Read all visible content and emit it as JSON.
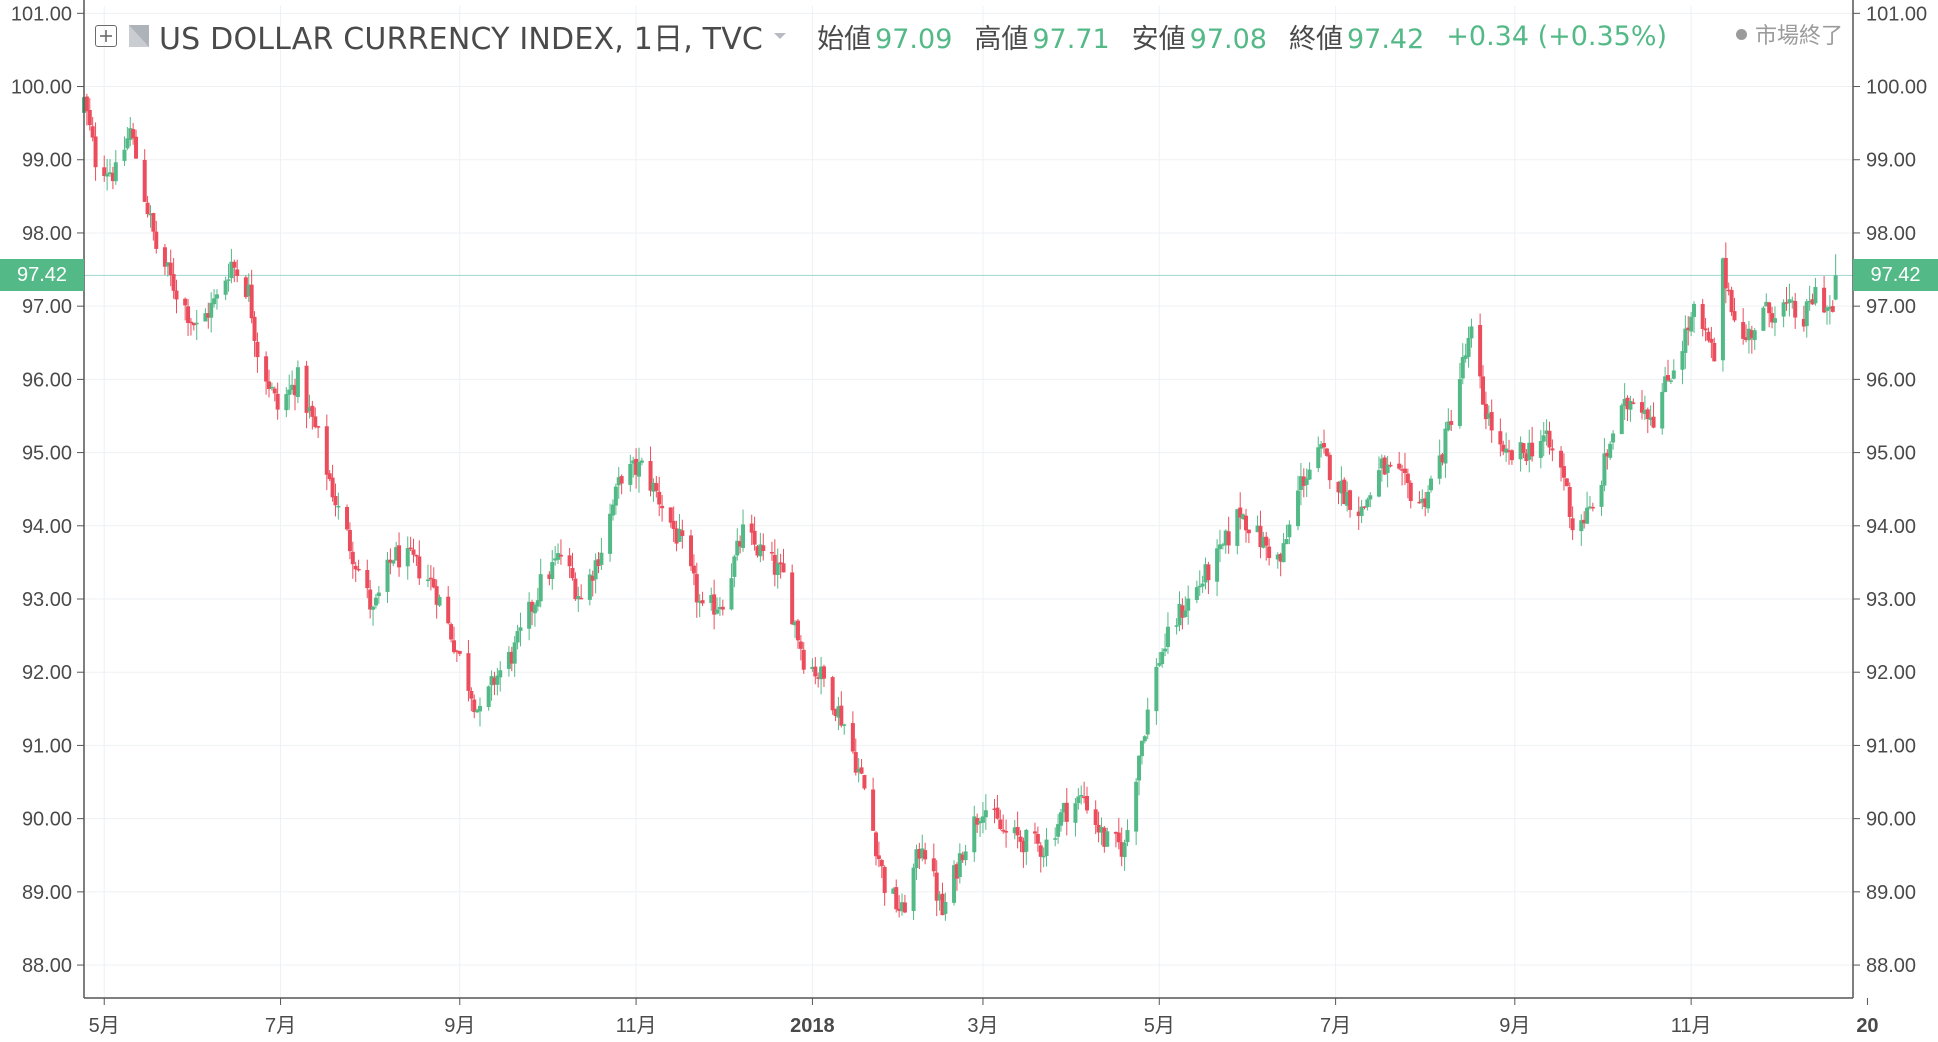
{
  "header": {
    "symbol": "US DOLLAR CURRENCY INDEX, 1日, TVC",
    "ohlc": [
      {
        "label": "始値",
        "value": "97.09"
      },
      {
        "label": "高値",
        "value": "97.71"
      },
      {
        "label": "安値",
        "value": "97.08"
      },
      {
        "label": "終値",
        "value": "97.42"
      }
    ],
    "change": "+0.34 (+0.35%)",
    "status": "市場終了"
  },
  "last_price_label": "97.42",
  "colors": {
    "up": "#53b987",
    "down": "#eb4d5c",
    "grid": "#eef1f4",
    "last_price_line": "#9fd6cf"
  },
  "chart_data": {
    "type": "candlestick",
    "title": "US DOLLAR CURRENCY INDEX, 1日, TVC",
    "interval": "1日",
    "last_close": 97.42,
    "y_ticks": [
      "101.00",
      "100.00",
      "99.00",
      "98.00",
      "97.00",
      "96.00",
      "95.00",
      "94.00",
      "93.00",
      "92.00",
      "91.00",
      "90.00",
      "89.00",
      "88.00"
    ],
    "ylim": [
      87.55,
      101.1
    ],
    "x_ticks": [
      {
        "label": "5月",
        "date": "2017-05-01",
        "bold": false
      },
      {
        "label": "7月",
        "date": "2017-07-01",
        "bold": false
      },
      {
        "label": "9月",
        "date": "2017-09-01",
        "bold": false
      },
      {
        "label": "11月",
        "date": "2017-11-01",
        "bold": false
      },
      {
        "label": "2018",
        "date": "2018-01-01",
        "bold": true
      },
      {
        "label": "3月",
        "date": "2018-03-01",
        "bold": false
      },
      {
        "label": "5月",
        "date": "2018-05-01",
        "bold": false
      },
      {
        "label": "7月",
        "date": "2018-07-01",
        "bold": false
      },
      {
        "label": "9月",
        "date": "2018-09-01",
        "bold": false
      },
      {
        "label": "11月",
        "date": "2018-11-01",
        "bold": false
      },
      {
        "label": "20",
        "date": "2019-01-01",
        "bold": true
      }
    ],
    "xlim": [
      "2017-04-24",
      "2018-12-27"
    ],
    "approx_closes": [
      {
        "date": "2017-04-24",
        "close": 99.8
      },
      {
        "date": "2017-04-28",
        "close": 99.0
      },
      {
        "date": "2017-05-05",
        "close": 98.8
      },
      {
        "date": "2017-05-10",
        "close": 99.4
      },
      {
        "date": "2017-05-19",
        "close": 97.8
      },
      {
        "date": "2017-05-26",
        "close": 97.2
      },
      {
        "date": "2017-06-02",
        "close": 96.7
      },
      {
        "date": "2017-06-09",
        "close": 97.1
      },
      {
        "date": "2017-06-14",
        "close": 97.6
      },
      {
        "date": "2017-06-20",
        "close": 97.2
      },
      {
        "date": "2017-06-23",
        "close": 96.4
      },
      {
        "date": "2017-06-30",
        "close": 95.6
      },
      {
        "date": "2017-07-07",
        "close": 96.0
      },
      {
        "date": "2017-07-14",
        "close": 95.2
      },
      {
        "date": "2017-07-21",
        "close": 94.2
      },
      {
        "date": "2017-07-28",
        "close": 93.4
      },
      {
        "date": "2017-08-02",
        "close": 92.8
      },
      {
        "date": "2017-08-09",
        "close": 93.6
      },
      {
        "date": "2017-08-16",
        "close": 93.5
      },
      {
        "date": "2017-08-23",
        "close": 93.2
      },
      {
        "date": "2017-08-31",
        "close": 92.3
      },
      {
        "date": "2017-09-08",
        "close": 91.4
      },
      {
        "date": "2017-09-13",
        "close": 91.9
      },
      {
        "date": "2017-09-20",
        "close": 92.3
      },
      {
        "date": "2017-09-29",
        "close": 93.2
      },
      {
        "date": "2017-10-06",
        "close": 93.6
      },
      {
        "date": "2017-10-13",
        "close": 93.0
      },
      {
        "date": "2017-10-20",
        "close": 93.7
      },
      {
        "date": "2017-10-27",
        "close": 94.7
      },
      {
        "date": "2017-11-03",
        "close": 94.8
      },
      {
        "date": "2017-11-10",
        "close": 94.3
      },
      {
        "date": "2017-11-17",
        "close": 93.7
      },
      {
        "date": "2017-11-24",
        "close": 92.8
      },
      {
        "date": "2017-12-01",
        "close": 93.0
      },
      {
        "date": "2017-12-08",
        "close": 93.9
      },
      {
        "date": "2017-12-15",
        "close": 93.6
      },
      {
        "date": "2017-12-22",
        "close": 93.3
      },
      {
        "date": "2017-12-29",
        "close": 92.2
      },
      {
        "date": "2018-01-05",
        "close": 91.9
      },
      {
        "date": "2018-01-12",
        "close": 91.3
      },
      {
        "date": "2018-01-19",
        "close": 90.4
      },
      {
        "date": "2018-01-26",
        "close": 89.1
      },
      {
        "date": "2018-02-01",
        "close": 88.7
      },
      {
        "date": "2018-02-08",
        "close": 89.7
      },
      {
        "date": "2018-02-15",
        "close": 88.7
      },
      {
        "date": "2018-02-22",
        "close": 89.6
      },
      {
        "date": "2018-03-01",
        "close": 90.2
      },
      {
        "date": "2018-03-08",
        "close": 89.8
      },
      {
        "date": "2018-03-15",
        "close": 89.7
      },
      {
        "date": "2018-03-22",
        "close": 89.6
      },
      {
        "date": "2018-03-29",
        "close": 90.1
      },
      {
        "date": "2018-04-05",
        "close": 90.3
      },
      {
        "date": "2018-04-12",
        "close": 89.7
      },
      {
        "date": "2018-04-19",
        "close": 89.6
      },
      {
        "date": "2018-04-24",
        "close": 90.9
      },
      {
        "date": "2018-05-01",
        "close": 92.2
      },
      {
        "date": "2018-05-08",
        "close": 92.8
      },
      {
        "date": "2018-05-15",
        "close": 93.2
      },
      {
        "date": "2018-05-22",
        "close": 93.6
      },
      {
        "date": "2018-05-29",
        "close": 94.2
      },
      {
        "date": "2018-06-05",
        "close": 93.8
      },
      {
        "date": "2018-06-12",
        "close": 93.5
      },
      {
        "date": "2018-06-19",
        "close": 94.6
      },
      {
        "date": "2018-06-26",
        "close": 95.0
      },
      {
        "date": "2018-07-03",
        "close": 94.5
      },
      {
        "date": "2018-07-10",
        "close": 94.2
      },
      {
        "date": "2018-07-17",
        "close": 94.8
      },
      {
        "date": "2018-07-24",
        "close": 94.6
      },
      {
        "date": "2018-07-31",
        "close": 94.3
      },
      {
        "date": "2018-08-07",
        "close": 95.0
      },
      {
        "date": "2018-08-14",
        "close": 96.2
      },
      {
        "date": "2018-08-17",
        "close": 96.6
      },
      {
        "date": "2018-08-21",
        "close": 95.7
      },
      {
        "date": "2018-08-28",
        "close": 94.9
      },
      {
        "date": "2018-09-04",
        "close": 95.0
      },
      {
        "date": "2018-09-11",
        "close": 95.2
      },
      {
        "date": "2018-09-18",
        "close": 94.7
      },
      {
        "date": "2018-09-21",
        "close": 94.0
      },
      {
        "date": "2018-09-28",
        "close": 94.2
      },
      {
        "date": "2018-10-05",
        "close": 95.3
      },
      {
        "date": "2018-10-12",
        "close": 95.8
      },
      {
        "date": "2018-10-19",
        "close": 95.5
      },
      {
        "date": "2018-10-26",
        "close": 96.2
      },
      {
        "date": "2018-11-02",
        "close": 96.9
      },
      {
        "date": "2018-11-09",
        "close": 96.3
      },
      {
        "date": "2018-11-12",
        "close": 97.5
      },
      {
        "date": "2018-11-19",
        "close": 96.5
      },
      {
        "date": "2018-11-26",
        "close": 96.9
      },
      {
        "date": "2018-12-03",
        "close": 97.0
      },
      {
        "date": "2018-12-10",
        "close": 96.8
      },
      {
        "date": "2018-12-14",
        "close": 97.2
      },
      {
        "date": "2018-12-20",
        "close": 96.9
      },
      {
        "date": "2018-12-21",
        "close": 97.42
      }
    ]
  }
}
